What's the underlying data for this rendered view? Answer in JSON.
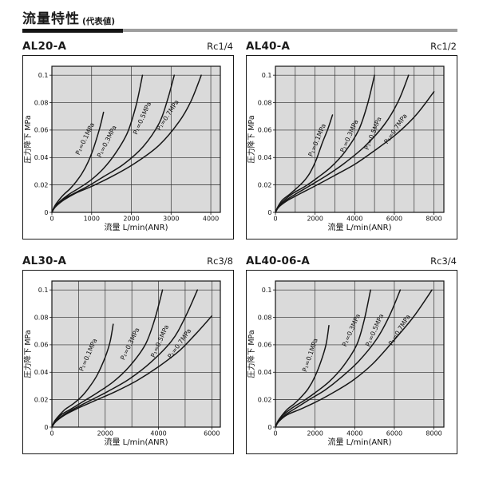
{
  "page": {
    "title": "流量特性",
    "title_note": "(代表値)",
    "rule_black_color": "#141414",
    "rule_gray_color": "#9e9e9e"
  },
  "chart_data": [
    {
      "type": "line",
      "model": "AL20-A",
      "port": "Rc1/4",
      "xlabel": "流量 L/min(ANR)",
      "ylabel": "圧力降下 MPa",
      "xlim": [
        0,
        4240
      ],
      "ylim": [
        0,
        0.1065
      ],
      "xticks": [
        0,
        1000,
        2000,
        3000,
        4000
      ],
      "xgrid_step": 1000,
      "yticks": [
        0,
        0.02,
        0.04,
        0.06,
        0.08,
        0.1
      ],
      "grid": true,
      "plot_bg": "#dadada",
      "series": [
        {
          "key": "p1-0.1mpa",
          "name": "P₁=0.1MPa",
          "label_at": [
            880,
            0.053
          ],
          "label_angle": -64,
          "points": [
            [
              0,
              0
            ],
            [
              60,
              0.004
            ],
            [
              150,
              0.008
            ],
            [
              300,
              0.013
            ],
            [
              450,
              0.017
            ],
            [
              600,
              0.022
            ],
            [
              750,
              0.028
            ],
            [
              900,
              0.036
            ],
            [
              1050,
              0.047
            ],
            [
              1200,
              0.061
            ],
            [
              1300,
              0.073
            ]
          ]
        },
        {
          "key": "p1-0.3mpa",
          "name": "P₁=0.3MPa",
          "label_at": [
            1430,
            0.051
          ],
          "label_angle": -63,
          "points": [
            [
              0,
              0
            ],
            [
              70,
              0.004
            ],
            [
              200,
              0.008
            ],
            [
              420,
              0.013
            ],
            [
              700,
              0.018
            ],
            [
              1000,
              0.024
            ],
            [
              1300,
              0.032
            ],
            [
              1600,
              0.043
            ],
            [
              1900,
              0.058
            ],
            [
              2120,
              0.078
            ],
            [
              2280,
              0.1
            ]
          ]
        },
        {
          "key": "p1-0.5mpa",
          "name": "P₁=0.5MPa",
          "label_at": [
            2320,
            0.068
          ],
          "label_angle": -66,
          "points": [
            [
              0,
              0
            ],
            [
              80,
              0.004
            ],
            [
              250,
              0.009
            ],
            [
              500,
              0.013
            ],
            [
              900,
              0.019
            ],
            [
              1300,
              0.026
            ],
            [
              1800,
              0.035
            ],
            [
              2300,
              0.048
            ],
            [
              2700,
              0.065
            ],
            [
              2900,
              0.081
            ],
            [
              3080,
              0.1
            ]
          ]
        },
        {
          "key": "p1-0.7mpa",
          "name": "P₁=0.7MPa",
          "label_at": [
            2960,
            0.07
          ],
          "label_angle": -57,
          "points": [
            [
              0,
              0
            ],
            [
              90,
              0.004
            ],
            [
              300,
              0.009
            ],
            [
              600,
              0.014
            ],
            [
              1000,
              0.019
            ],
            [
              1500,
              0.026
            ],
            [
              2100,
              0.036
            ],
            [
              2700,
              0.049
            ],
            [
              3200,
              0.066
            ],
            [
              3500,
              0.081
            ],
            [
              3760,
              0.1
            ]
          ]
        }
      ]
    },
    {
      "type": "line",
      "model": "AL40-A",
      "port": "Rc1/2",
      "xlabel": "流量 L/min(ANR)",
      "ylabel": "圧力降下 MPa",
      "xlim": [
        0,
        8500
      ],
      "ylim": [
        0,
        0.1065
      ],
      "xticks": [
        0,
        2000,
        4000,
        6000,
        8000
      ],
      "xgrid_step": 1000,
      "yticks": [
        0,
        0.02,
        0.04,
        0.06,
        0.08,
        0.1
      ],
      "grid": true,
      "plot_bg": "#dadada",
      "series": [
        {
          "key": "p1-0.1mpa",
          "name": "P₁=0.1MPa",
          "label_at": [
            2200,
            0.052
          ],
          "label_angle": -67,
          "points": [
            [
              0,
              0
            ],
            [
              120,
              0.004
            ],
            [
              350,
              0.009
            ],
            [
              700,
              0.013
            ],
            [
              1100,
              0.018
            ],
            [
              1450,
              0.023
            ],
            [
              1750,
              0.029
            ],
            [
              2050,
              0.038
            ],
            [
              2350,
              0.05
            ],
            [
              2650,
              0.061
            ],
            [
              2880,
              0.071
            ]
          ]
        },
        {
          "key": "p1-0.3mpa",
          "name": "P₁=0.3MPa",
          "label_at": [
            3820,
            0.055
          ],
          "label_angle": -66,
          "points": [
            [
              0,
              0
            ],
            [
              140,
              0.004
            ],
            [
              450,
              0.009
            ],
            [
              900,
              0.014
            ],
            [
              1500,
              0.019
            ],
            [
              2100,
              0.025
            ],
            [
              2800,
              0.033
            ],
            [
              3500,
              0.044
            ],
            [
              4200,
              0.06
            ],
            [
              4650,
              0.079
            ],
            [
              5000,
              0.1
            ]
          ]
        },
        {
          "key": "p1-0.5mpa",
          "name": "P₁=0.5MPa",
          "label_at": [
            5020,
            0.057
          ],
          "label_angle": -68,
          "points": [
            [
              0,
              0
            ],
            [
              160,
              0.004
            ],
            [
              550,
              0.009
            ],
            [
              1100,
              0.014
            ],
            [
              1800,
              0.02
            ],
            [
              2600,
              0.027
            ],
            [
              3500,
              0.036
            ],
            [
              4500,
              0.048
            ],
            [
              5500,
              0.064
            ],
            [
              6200,
              0.081
            ],
            [
              6720,
              0.1
            ]
          ]
        },
        {
          "key": "p1-0.7mpa",
          "name": "P₁=0.7MPa",
          "label_at": [
            6150,
            0.06
          ],
          "label_angle": -55,
          "points": [
            [
              0,
              0
            ],
            [
              180,
              0.004
            ],
            [
              650,
              0.009
            ],
            [
              1300,
              0.014
            ],
            [
              2100,
              0.02
            ],
            [
              3000,
              0.027
            ],
            [
              4000,
              0.035
            ],
            [
              5000,
              0.045
            ],
            [
              6100,
              0.057
            ],
            [
              7100,
              0.071
            ],
            [
              8000,
              0.088
            ]
          ]
        }
      ]
    },
    {
      "type": "line",
      "model": "AL30-A",
      "port": "Rc3/8",
      "xlabel": "流量 L/min(ANR)",
      "ylabel": "圧力降下 MPa",
      "xlim": [
        0,
        6320
      ],
      "ylim": [
        0,
        0.1065
      ],
      "xticks": [
        0,
        2000,
        4000,
        6000
      ],
      "xgrid_step": 1000,
      "yticks": [
        0,
        0.02,
        0.04,
        0.06,
        0.08,
        0.1
      ],
      "grid": true,
      "plot_bg": "#dadada",
      "series": [
        {
          "key": "p1-0.1mpa",
          "name": "P₁=0.1MPa",
          "label_at": [
            1430,
            0.052
          ],
          "label_angle": -66,
          "points": [
            [
              0,
              0
            ],
            [
              90,
              0.004
            ],
            [
              250,
              0.008
            ],
            [
              500,
              0.013
            ],
            [
              800,
              0.017
            ],
            [
              1100,
              0.022
            ],
            [
              1400,
              0.029
            ],
            [
              1700,
              0.038
            ],
            [
              2000,
              0.051
            ],
            [
              2180,
              0.062
            ],
            [
              2300,
              0.075
            ]
          ]
        },
        {
          "key": "p1-0.3mpa",
          "name": "P₁=0.3MPa",
          "label_at": [
            3000,
            0.06
          ],
          "label_angle": -64,
          "points": [
            [
              0,
              0
            ],
            [
              110,
              0.004
            ],
            [
              350,
              0.009
            ],
            [
              700,
              0.013
            ],
            [
              1200,
              0.019
            ],
            [
              1700,
              0.025
            ],
            [
              2300,
              0.033
            ],
            [
              2900,
              0.044
            ],
            [
              3500,
              0.06
            ],
            [
              3850,
              0.078
            ],
            [
              4150,
              0.1
            ]
          ]
        },
        {
          "key": "p1-0.5mpa",
          "name": "P₁=0.5MPa",
          "label_at": [
            4120,
            0.062
          ],
          "label_angle": -66,
          "points": [
            [
              0,
              0
            ],
            [
              130,
              0.004
            ],
            [
              450,
              0.009
            ],
            [
              900,
              0.014
            ],
            [
              1500,
              0.02
            ],
            [
              2100,
              0.026
            ],
            [
              2900,
              0.035
            ],
            [
              3700,
              0.047
            ],
            [
              4500,
              0.063
            ],
            [
              5000,
              0.08
            ],
            [
              5460,
              0.1
            ]
          ]
        },
        {
          "key": "p1-0.7mpa",
          "name": "P₁=0.7MPa",
          "label_at": [
            4850,
            0.06
          ],
          "label_angle": -54,
          "points": [
            [
              0,
              0
            ],
            [
              150,
              0.004
            ],
            [
              500,
              0.009
            ],
            [
              1000,
              0.014
            ],
            [
              1700,
              0.02
            ],
            [
              2400,
              0.026
            ],
            [
              3200,
              0.034
            ],
            [
              4000,
              0.044
            ],
            [
              4800,
              0.056
            ],
            [
              5400,
              0.068
            ],
            [
              6000,
              0.081
            ]
          ]
        }
      ]
    },
    {
      "type": "line",
      "model": "AL40-06-A",
      "port": "Rc3/4",
      "xlabel": "流量 L/min(ANR)",
      "ylabel": "圧力降下 MPa",
      "xlim": [
        0,
        8500
      ],
      "ylim": [
        0,
        0.1065
      ],
      "xticks": [
        0,
        2000,
        4000,
        6000,
        8000
      ],
      "xgrid_step": 2000,
      "yticks": [
        0,
        0.02,
        0.04,
        0.06,
        0.08,
        0.1
      ],
      "grid": true,
      "plot_bg": "#dadada",
      "series": [
        {
          "key": "p1-0.1mpa",
          "name": "P₁=0.1MPa",
          "label_at": [
            1850,
            0.052
          ],
          "label_angle": -71,
          "points": [
            [
              0,
              0
            ],
            [
              110,
              0.004
            ],
            [
              300,
              0.008
            ],
            [
              600,
              0.013
            ],
            [
              950,
              0.017
            ],
            [
              1300,
              0.022
            ],
            [
              1650,
              0.028
            ],
            [
              2000,
              0.037
            ],
            [
              2300,
              0.048
            ],
            [
              2550,
              0.06
            ],
            [
              2700,
              0.074
            ]
          ]
        },
        {
          "key": "p1-0.3mpa",
          "name": "P₁=0.3MPa",
          "label_at": [
            3920,
            0.07
          ],
          "label_angle": -66,
          "points": [
            [
              0,
              0
            ],
            [
              130,
              0.004
            ],
            [
              400,
              0.009
            ],
            [
              850,
              0.014
            ],
            [
              1400,
              0.019
            ],
            [
              2000,
              0.025
            ],
            [
              2700,
              0.033
            ],
            [
              3400,
              0.044
            ],
            [
              4100,
              0.06
            ],
            [
              4480,
              0.078
            ],
            [
              4800,
              0.1
            ]
          ]
        },
        {
          "key": "p1-0.5mpa",
          "name": "P₁=0.5MPa",
          "label_at": [
            5100,
            0.07
          ],
          "label_angle": -66,
          "points": [
            [
              0,
              0
            ],
            [
              150,
              0.004
            ],
            [
              500,
              0.009
            ],
            [
              1050,
              0.014
            ],
            [
              1700,
              0.02
            ],
            [
              2500,
              0.027
            ],
            [
              3300,
              0.036
            ],
            [
              4200,
              0.048
            ],
            [
              5100,
              0.064
            ],
            [
              5750,
              0.081
            ],
            [
              6300,
              0.1
            ]
          ]
        },
        {
          "key": "p1-0.7mpa",
          "name": "P₁=0.7MPa",
          "label_at": [
            6350,
            0.07
          ],
          "label_angle": -58,
          "points": [
            [
              0,
              0
            ],
            [
              170,
              0.004
            ],
            [
              600,
              0.009
            ],
            [
              1250,
              0.013
            ],
            [
              2000,
              0.018
            ],
            [
              2900,
              0.025
            ],
            [
              3900,
              0.034
            ],
            [
              4900,
              0.046
            ],
            [
              5900,
              0.062
            ],
            [
              6950,
              0.08
            ],
            [
              7900,
              0.1
            ]
          ]
        }
      ]
    }
  ]
}
